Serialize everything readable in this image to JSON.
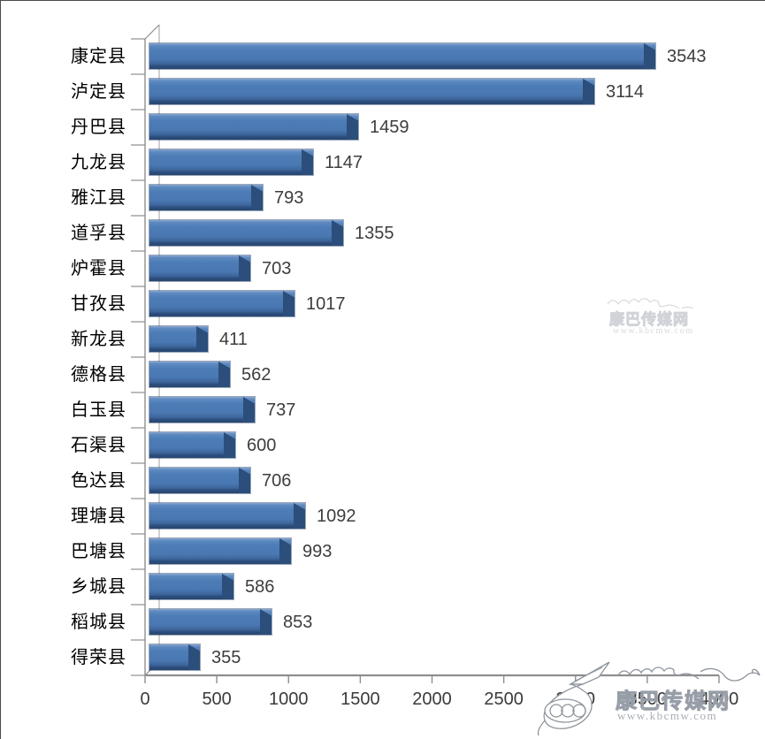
{
  "chart_data": {
    "type": "bar",
    "orientation": "horizontal",
    "style": "excel-3d-horizontal-bar",
    "title": "",
    "categories": [
      "康定县",
      "泸定县",
      "丹巴县",
      "九龙县",
      "雅江县",
      "道孚县",
      "炉霍县",
      "甘孜县",
      "新龙县",
      "德格县",
      "白玉县",
      "石渠县",
      "色达县",
      "理塘县",
      "巴塘县",
      "乡城县",
      "稻城县",
      "得荣县"
    ],
    "values": [
      3543,
      3114,
      1459,
      1147,
      793,
      1355,
      703,
      1017,
      411,
      562,
      737,
      600,
      706,
      1092,
      993,
      586,
      853,
      355
    ],
    "data_labels": [
      3543,
      3114,
      1459,
      1147,
      793,
      1355,
      703,
      1017,
      411,
      562,
      737,
      600,
      706,
      1092,
      993,
      586,
      853,
      355
    ],
    "xlabel": "",
    "ylabel": "",
    "xlim": [
      0,
      4000
    ],
    "x_tick_labels": [
      "0",
      "500",
      "1000",
      "1500",
      "2000",
      "2500",
      "3000",
      "3500",
      "4000"
    ],
    "grid": false,
    "legend": null,
    "bar_color": "#4c7cb6",
    "bar_edge_color": "#27466f"
  },
  "watermark": {
    "site_name": "康巴传媒网",
    "site_url": "www.kbcmw.com"
  },
  "colors": {
    "axis": "#8e8e8e",
    "label_text": "#3d3d3d",
    "background": "#ffffff",
    "watermark": "#9aa0a8"
  }
}
